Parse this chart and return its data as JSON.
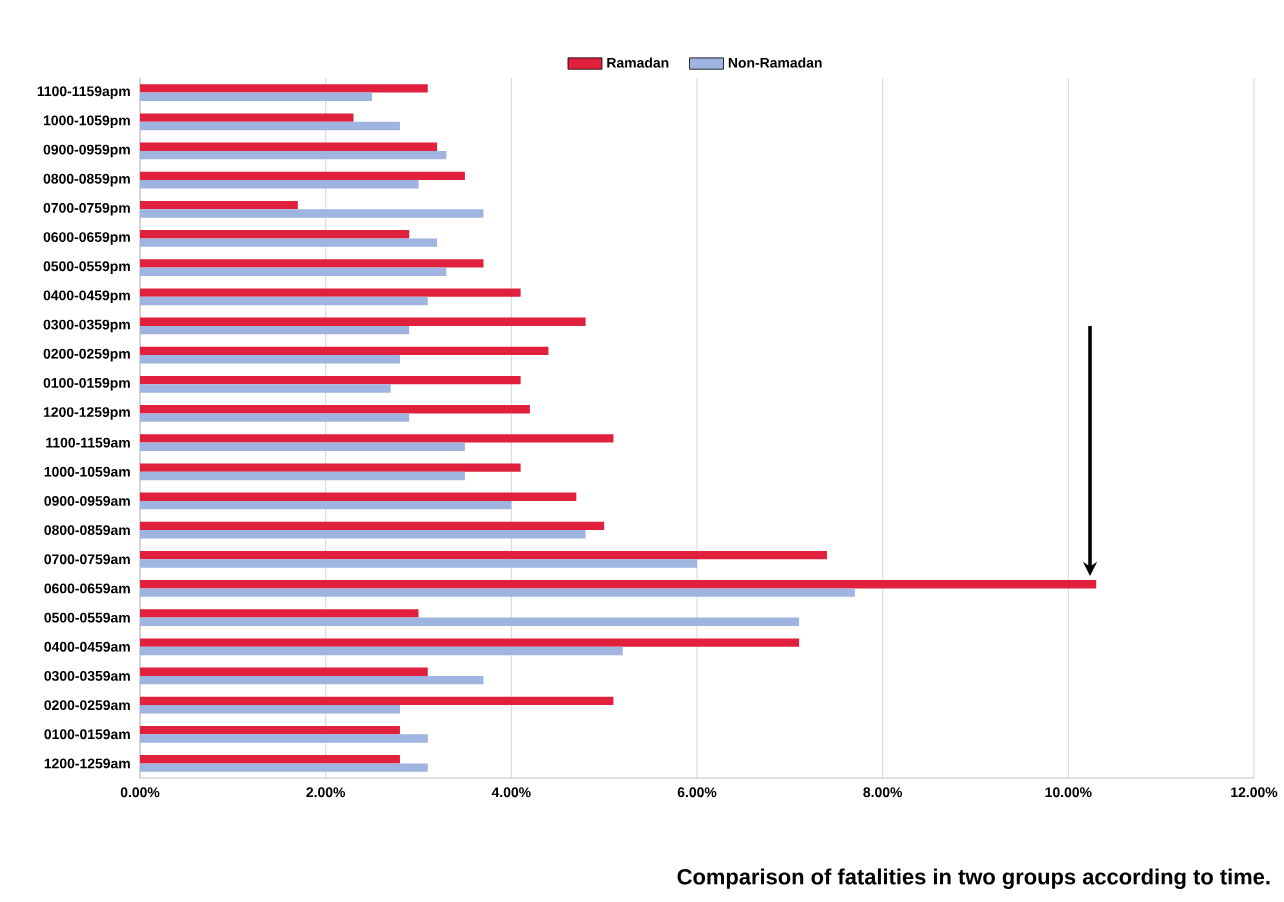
{
  "chart_data": {
    "type": "bar",
    "orientation": "horizontal",
    "legend": "top",
    "grid": "x",
    "categories": [
      "1100-1159apm",
      "1000-1059pm",
      "0900-0959pm",
      "0800-0859pm",
      "0700-0759pm",
      "0600-0659pm",
      "0500-0559pm",
      "0400-0459pm",
      "0300-0359pm",
      "0200-0259pm",
      "0100-0159pm",
      "1200-1259pm",
      "1100-1159am",
      "1000-1059am",
      "0900-0959am",
      "0800-0859am",
      "0700-0759am",
      "0600-0659am",
      "0500-0559am",
      "0400-0459am",
      "0300-0359am",
      "0200-0259am",
      "0100-0159am",
      "1200-1259am"
    ],
    "series": [
      {
        "name": "Ramadan",
        "color": "#e0203c",
        "values": [
          3.1,
          2.3,
          3.2,
          3.5,
          1.7,
          2.9,
          3.7,
          4.1,
          4.8,
          4.4,
          4.1,
          4.2,
          5.1,
          4.1,
          4.7,
          5.0,
          7.4,
          10.3,
          3.0,
          7.1,
          3.1,
          5.1,
          2.8,
          2.8
        ]
      },
      {
        "name": "Non-Ramadan",
        "color": "#9fb4e0",
        "values": [
          2.5,
          2.8,
          3.3,
          3.0,
          3.7,
          3.2,
          3.3,
          3.1,
          2.9,
          2.8,
          2.7,
          2.9,
          3.5,
          3.5,
          4.0,
          4.8,
          6.0,
          7.7,
          7.1,
          5.2,
          3.7,
          2.8,
          3.1,
          3.1
        ]
      }
    ],
    "xlim": [
      0,
      12
    ],
    "xticks": [
      {
        "value": 0,
        "label": "0.00%"
      },
      {
        "value": 2,
        "label": "2.00%"
      },
      {
        "value": 4,
        "label": "4.00%"
      },
      {
        "value": 6,
        "label": "6.00%"
      },
      {
        "value": 8,
        "label": "8.00%"
      },
      {
        "value": 10,
        "label": "10.00%"
      },
      {
        "value": 12,
        "label": "12.00%"
      }
    ],
    "annotations": [
      "Comparison of fatalities in two groups according to time."
    ]
  }
}
